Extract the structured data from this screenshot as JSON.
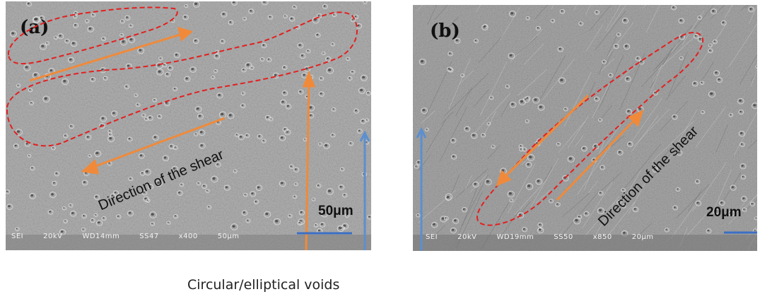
{
  "panels": [
    {
      "label": "(a)",
      "shear_label": "Direction of the shear",
      "scale_label": "50μm",
      "meta": [
        "SEI",
        "20kV",
        "WD14mm",
        "SS47",
        "x400",
        "50μm"
      ]
    },
    {
      "label": "(b)",
      "shear_label": "Direction of the shear",
      "scale_label": "20μm",
      "meta": [
        "SEI",
        "20kV",
        "WD19mm",
        "SS50",
        "x850",
        "20μm"
      ]
    }
  ],
  "annotation": {
    "voids_label": "Circular/elliptical voids"
  },
  "colors": {
    "arrow": "#f08a3a",
    "dashed_outline": "#e32020",
    "scale_bar": "#3b6fc4",
    "vertical_arrow": "#5b8fd0"
  }
}
